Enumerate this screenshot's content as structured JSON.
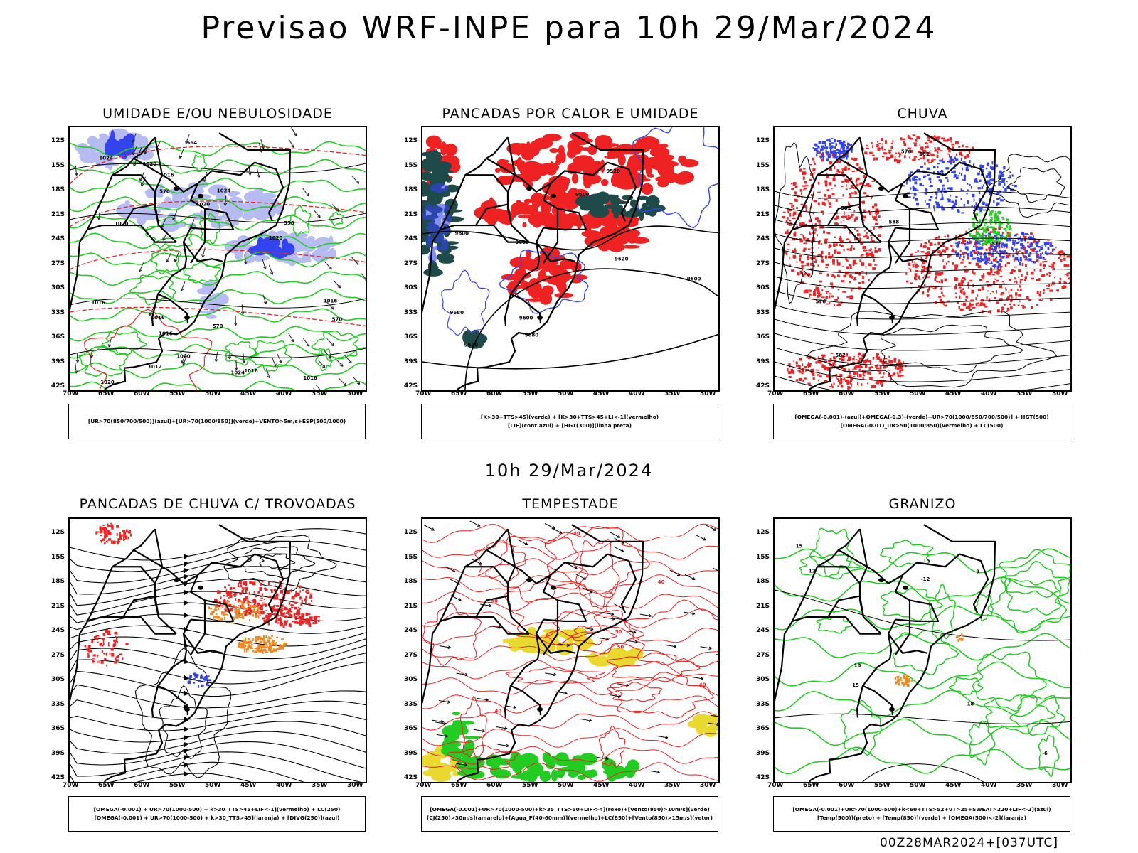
{
  "main_title": "Previsao WRF-INPE  para 10h 29/Mar/2024",
  "mid_title": "10h 29/Mar/2024",
  "footer": "00Z28MAR2024+[037UTC]",
  "lat_labels": [
    "12S",
    "15S",
    "18S",
    "21S",
    "24S",
    "27S",
    "30S",
    "33S",
    "36S",
    "39S",
    "42S"
  ],
  "lon_labels": [
    "70W",
    "65W",
    "60W",
    "55W",
    "50W",
    "45W",
    "40W",
    "35W",
    "30W"
  ],
  "colors": {
    "green": "#22cc22",
    "red": "#ee2222",
    "blue": "#3344ee",
    "lightblue": "#aab0f0",
    "darkteal": "#1e4a4a",
    "yellow": "#e8d830",
    "orange": "#ee8822"
  },
  "panels": [
    {
      "title": "UMIDADE E/OU NEBULOSIDADE",
      "legend": [
        "[UR>70(850/700/500)](azul)+[UR>70(1000/850)](verde)+VENTO>5m/s+ESP(500/1000)"
      ],
      "contour_labels": [
        "1016",
        "1016",
        "1016",
        "1020",
        "1024",
        "1016",
        "1016",
        "1020",
        "1020",
        "1020",
        "1016",
        "1016",
        "1024",
        "1012",
        "1020",
        "1020",
        "1024",
        "570",
        "570",
        "564",
        "558",
        "570"
      ]
    },
    {
      "title": "PANCADAS POR CALOR E UMIDADE",
      "legend": [
        "[K>30+TTS>45](verde) + [K>30+TTS>45+LI<-1](vermelho)",
        "[LIF](cont.azul) + [HGT(300)](linha preta)"
      ],
      "contour_labels": [
        "9680",
        "9600",
        "9680",
        "9680",
        "9600",
        "9520",
        "9600",
        "9520",
        "9600",
        "9520"
      ]
    },
    {
      "title": "CHUVA",
      "legend": [
        "[OMEGA(-0.001)-(azul)+OMEGA(-0.3)-(verde)+UR>70(1000/850/700/500)] + HGT(500)",
        "[OMEGA(-0.01)_UR>50(1000/850)(vermelho) + LC(500)"
      ],
      "contour_labels": [
        "588",
        "582",
        "582",
        "576",
        "582",
        "576",
        "576"
      ]
    },
    {
      "title": "PANCADAS DE CHUVA C/ TROVOADAS",
      "legend": [
        "[OMEGA(-0.001) + UR>70(1000-500) + k>30_TTS>45+LIF<-1](vermelho) + LC(250)",
        "[OMEGA(-0.001) + UR>70(1000-500) + k>30_TTS>45](laranja) + [DIVG(250)](azul)"
      ],
      "contour_labels": []
    },
    {
      "title": "TEMPESTADE",
      "legend": [
        "[OMEGA(-0.001)+UR>70(1000-500)+k>35_TTS>50+LIF<-4](roxo)+[Vento(850)>10m/s](verde)",
        "[CJ(250)>30m/s](amarelo)+[Agua_P(40-60mm)](vermelho)+LC(850)+[Vento(850)>15m/s](vetor)"
      ],
      "contour_labels": [
        "40",
        "50",
        "40",
        "50",
        "40",
        "50",
        "40"
      ]
    },
    {
      "title": "GRANIZO",
      "legend": [
        "[OMEGA(-0.001)+UR>70(1000-500)+k<60+TTS>52+VT>25+SWEAT>220+LIF<-2](azul)",
        "[Temp(500)](preto) + [Temp(850)](verde) + [OMEGA(500)<-2](laranja)"
      ],
      "contour_labels": [
        "18",
        "15",
        "15",
        "-6",
        "12",
        "-9",
        "-12",
        "15",
        "18"
      ]
    }
  ]
}
